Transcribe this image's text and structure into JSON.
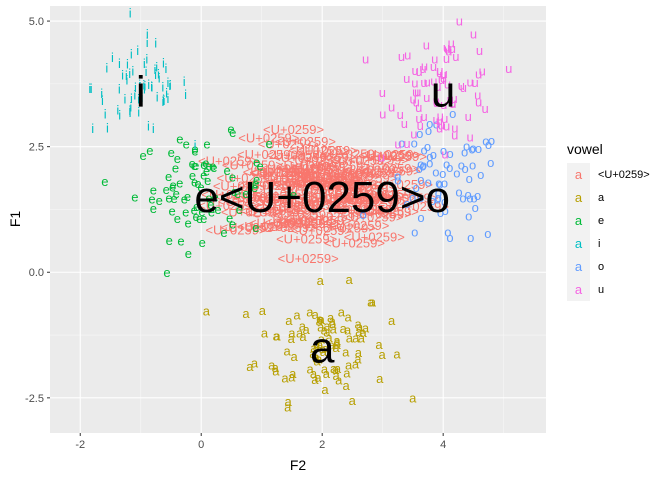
{
  "chart_data": {
    "type": "scatter",
    "title": "",
    "xlabel": "F2",
    "ylabel": "F1",
    "xlim": [
      -2.5,
      5.7
    ],
    "ylim": [
      -3.2,
      5.3
    ],
    "x_ticks": [
      -2,
      0,
      2,
      4
    ],
    "y_ticks": [
      -2.5,
      0.0,
      2.5,
      5.0
    ],
    "x_tick_labels": [
      "-2",
      "0",
      "2",
      "4"
    ],
    "y_tick_labels": [
      "-2.5",
      "0.0",
      "2.5",
      "5.0"
    ],
    "grid": true,
    "legend": {
      "title": "vowel",
      "position": "right",
      "entries": [
        {
          "label": "<U+0259>",
          "key": "a",
          "color": "#F8766D"
        },
        {
          "label": "a",
          "key": "a",
          "color": "#B79F00"
        },
        {
          "label": "e",
          "key": "a",
          "color": "#00BA38"
        },
        {
          "label": "i",
          "key": "a",
          "color": "#00BFC4"
        },
        {
          "label": "o",
          "key": "a",
          "color": "#619CFF"
        },
        {
          "label": "u",
          "key": "a",
          "color": "#F564E3"
        }
      ]
    },
    "series": [
      {
        "name": "<U+0259>",
        "symbol": "<U+0259>",
        "color": "#F8766D",
        "center": [
          2.0,
          1.5
        ],
        "spread": [
          0.75,
          0.5
        ],
        "n": 120
      },
      {
        "name": "a",
        "symbol": "a",
        "color": "#B79F00",
        "center": [
          2.0,
          -1.5
        ],
        "spread": [
          0.55,
          0.55
        ],
        "n": 100
      },
      {
        "name": "e",
        "symbol": "e",
        "color": "#00BA38",
        "center": [
          0.0,
          1.6
        ],
        "spread": [
          0.55,
          0.5
        ],
        "n": 80
      },
      {
        "name": "i",
        "symbol": "i",
        "color": "#00BFC4",
        "center": [
          -1.0,
          3.6
        ],
        "spread": [
          0.4,
          0.45
        ],
        "n": 70
      },
      {
        "name": "o",
        "symbol": "o",
        "color": "#619CFF",
        "center": [
          4.0,
          1.6
        ],
        "spread": [
          0.5,
          0.6
        ],
        "n": 70
      },
      {
        "name": "u",
        "symbol": "u",
        "color": "#F564E3",
        "center": [
          4.0,
          3.6
        ],
        "spread": [
          0.45,
          0.55
        ],
        "n": 80
      }
    ],
    "centroid_labels": [
      {
        "text": "e<U+0259>o",
        "x": 2.0,
        "y": 1.5
      },
      {
        "text": "i",
        "x": -1.0,
        "y": 3.6
      },
      {
        "text": "u",
        "x": 4.0,
        "y": 3.6
      },
      {
        "text": "a",
        "x": 2.0,
        "y": -1.5
      }
    ]
  }
}
